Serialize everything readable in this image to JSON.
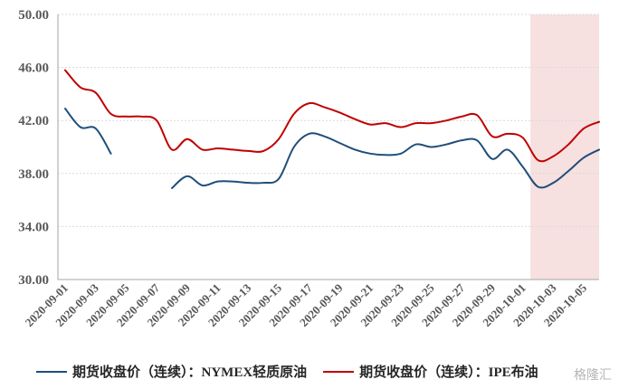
{
  "chart_data": {
    "type": "line",
    "title": "",
    "xlabel": "",
    "ylabel": "",
    "ylim": [
      30,
      50
    ],
    "yticks": [
      "30.00",
      "34.00",
      "38.00",
      "42.00",
      "46.00",
      "50.00"
    ],
    "ytick_values": [
      30,
      34,
      38,
      42,
      46,
      50
    ],
    "grid": true,
    "legend_position": "bottom",
    "x": [
      "2020-09-01",
      "2020-09-02",
      "2020-09-03",
      "2020-09-04",
      "2020-09-05",
      "2020-09-06",
      "2020-09-07",
      "2020-09-08",
      "2020-09-09",
      "2020-09-10",
      "2020-09-11",
      "2020-09-12",
      "2020-09-13",
      "2020-09-14",
      "2020-09-15",
      "2020-09-16",
      "2020-09-17",
      "2020-09-18",
      "2020-09-19",
      "2020-09-20",
      "2020-09-21",
      "2020-09-22",
      "2020-09-23",
      "2020-09-24",
      "2020-09-25",
      "2020-09-26",
      "2020-09-27",
      "2020-09-28",
      "2020-09-29",
      "2020-09-30",
      "2020-10-01",
      "2020-10-02",
      "2020-10-03",
      "2020-10-04",
      "2020-10-05",
      "2020-10-06"
    ],
    "xtick_labels": [
      "2020-09-01",
      "2020-09-03",
      "2020-09-05",
      "2020-09-07",
      "2020-09-09",
      "2020-09-11",
      "2020-09-13",
      "2020-09-15",
      "2020-09-17",
      "2020-09-19",
      "2020-09-21",
      "2020-09-23",
      "2020-09-25",
      "2020-09-27",
      "2020-09-29",
      "2020-10-01",
      "2020-10-03",
      "2020-10-05"
    ],
    "shaded_region": {
      "from": "2020-10-02",
      "to": "2020-10-06",
      "color": "#f6dada"
    },
    "series": [
      {
        "name": "期货收盘价（连续）：NYMEX轻质原油",
        "color": "#1f4e79",
        "values": [
          42.9,
          41.5,
          41.4,
          39.5,
          null,
          null,
          null,
          36.9,
          37.8,
          37.1,
          37.4,
          37.4,
          37.3,
          37.3,
          37.6,
          40.0,
          41.0,
          40.8,
          40.3,
          39.8,
          39.5,
          39.4,
          39.5,
          40.2,
          40.0,
          40.2,
          40.5,
          40.5,
          39.1,
          39.8,
          38.5,
          37.0,
          37.3,
          38.2,
          39.2,
          39.8
        ]
      },
      {
        "name": "期货收盘价（连续）：IPE布油",
        "color": "#c00000",
        "values": [
          45.8,
          44.5,
          44.1,
          42.5,
          42.3,
          42.3,
          42.0,
          39.8,
          40.6,
          39.8,
          39.9,
          39.8,
          39.7,
          39.7,
          40.6,
          42.5,
          43.3,
          43.0,
          42.6,
          42.1,
          41.7,
          41.8,
          41.5,
          41.8,
          41.8,
          42.0,
          42.3,
          42.4,
          40.8,
          41.0,
          40.7,
          39.0,
          39.3,
          40.2,
          41.4,
          41.9
        ]
      }
    ]
  },
  "legend": {
    "items": [
      {
        "label": "期货收盘价（连续）：NYMEX轻质原油",
        "color": "#1f4e79"
      },
      {
        "label": "期货收盘价（连续）：IPE布油",
        "color": "#c00000"
      }
    ]
  },
  "watermark": "格隆汇"
}
